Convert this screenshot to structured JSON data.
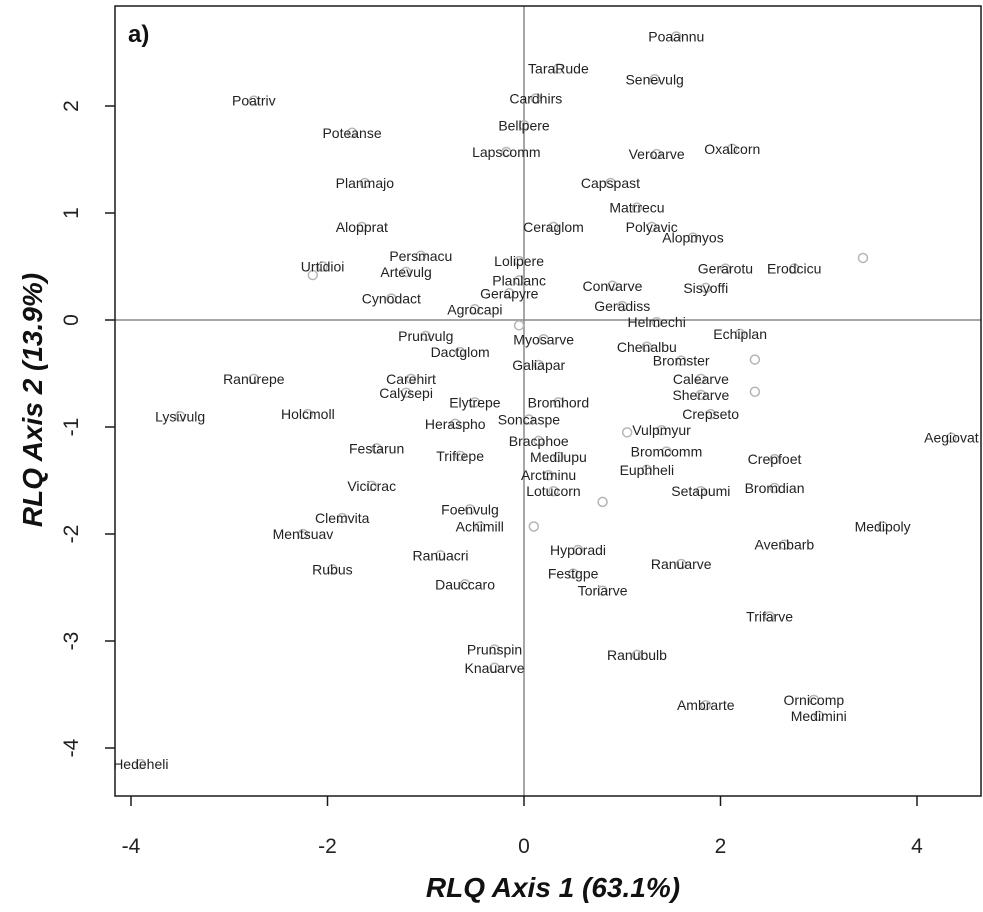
{
  "chart_data": {
    "type": "scatter",
    "panel_label": "a)",
    "xlabel": "RLQ Axis 1 (63.1%)",
    "ylabel": "RLQ Axis 2 (13.9%)",
    "xlim": [
      -4.1,
      4.6
    ],
    "ylim": [
      -4.4,
      2.95
    ],
    "xticks": [
      -4,
      -2,
      0,
      2,
      4
    ],
    "yticks": [
      -4,
      -3,
      -2,
      -1,
      0,
      1,
      2
    ],
    "reference_lines": {
      "x": 0,
      "y": 0
    },
    "grid": false,
    "points": [
      {
        "name": "Poaannu",
        "x": 1.55,
        "y": 2.65
      },
      {
        "name": "TaraRude",
        "x": 0.35,
        "y": 2.35
      },
      {
        "name": "Senevulg",
        "x": 1.33,
        "y": 2.25
      },
      {
        "name": "Poatriv",
        "x": -2.75,
        "y": 2.05
      },
      {
        "name": "Cardhirs",
        "x": 0.12,
        "y": 2.07
      },
      {
        "name": "Bellpere",
        "x": 0.0,
        "y": 1.82
      },
      {
        "name": "Poteanse",
        "x": -1.75,
        "y": 1.75
      },
      {
        "name": "Oxalcorn",
        "x": 2.12,
        "y": 1.6
      },
      {
        "name": "Veroarve",
        "x": 1.35,
        "y": 1.55
      },
      {
        "name": "Lapscomm",
        "x": -0.18,
        "y": 1.57
      },
      {
        "name": "Capspast",
        "x": 0.88,
        "y": 1.28
      },
      {
        "name": "Planmajo",
        "x": -1.62,
        "y": 1.28
      },
      {
        "name": "Matrrecu",
        "x": 1.15,
        "y": 1.05
      },
      {
        "name": "Ceraglom",
        "x": 0.3,
        "y": 0.87
      },
      {
        "name": "Polyavic",
        "x": 1.3,
        "y": 0.87
      },
      {
        "name": "Alopprat",
        "x": -1.65,
        "y": 0.87
      },
      {
        "name": "Alopmyos",
        "x": 1.72,
        "y": 0.77
      },
      {
        "name": "Persmacu",
        "x": -1.05,
        "y": 0.6
      },
      {
        "name": "Lolipere",
        "x": -0.05,
        "y": 0.55
      },
      {
        "name": "Urtidioi",
        "x": -2.05,
        "y": 0.5
      },
      {
        "name": "Artevulg",
        "x": -1.2,
        "y": 0.45
      },
      {
        "name": "Planlanc",
        "x": -0.05,
        "y": 0.37
      },
      {
        "name": "Convarve",
        "x": 0.9,
        "y": 0.32
      },
      {
        "name": "Gerarotu",
        "x": 2.05,
        "y": 0.48
      },
      {
        "name": "Erodcicu",
        "x": 2.75,
        "y": 0.48
      },
      {
        "name": "Cynodact",
        "x": -1.35,
        "y": 0.2
      },
      {
        "name": "Gerapyre",
        "x": -0.15,
        "y": 0.25
      },
      {
        "name": "Sisyoffi",
        "x": 1.85,
        "y": 0.3
      },
      {
        "name": "Agrocapi",
        "x": -0.5,
        "y": 0.1
      },
      {
        "name": "Geradiss",
        "x": 1.0,
        "y": 0.13
      },
      {
        "name": "Helmechi",
        "x": 1.35,
        "y": -0.02
      },
      {
        "name": "Prunvulg",
        "x": -1.0,
        "y": -0.15
      },
      {
        "name": "Echiplan",
        "x": 2.2,
        "y": -0.13
      },
      {
        "name": "Myosarve",
        "x": 0.2,
        "y": -0.18
      },
      {
        "name": "Chenalbu",
        "x": 1.25,
        "y": -0.25
      },
      {
        "name": "Dactglom",
        "x": -0.65,
        "y": -0.3
      },
      {
        "name": "Bromster",
        "x": 1.6,
        "y": -0.38
      },
      {
        "name": "Galiapar",
        "x": 0.15,
        "y": -0.42
      },
      {
        "name": "Ranurepe",
        "x": -2.75,
        "y": -0.55
      },
      {
        "name": "Carehirt",
        "x": -1.15,
        "y": -0.55
      },
      {
        "name": "Calearve",
        "x": 1.8,
        "y": -0.55
      },
      {
        "name": "Calysepi",
        "x": -1.2,
        "y": -0.68
      },
      {
        "name": "Sherarve",
        "x": 1.8,
        "y": -0.7
      },
      {
        "name": "Elytrepe",
        "x": -0.5,
        "y": -0.77
      },
      {
        "name": "Bromhord",
        "x": 0.35,
        "y": -0.77
      },
      {
        "name": "Lysivulg",
        "x": -3.5,
        "y": -0.9
      },
      {
        "name": "Holcmoll",
        "x": -2.2,
        "y": -0.88
      },
      {
        "name": "Crepseto",
        "x": 1.9,
        "y": -0.88
      },
      {
        "name": "Soncaspe",
        "x": 0.05,
        "y": -0.93
      },
      {
        "name": "Heraspho",
        "x": -0.7,
        "y": -0.97
      },
      {
        "name": "Vulpmyur",
        "x": 1.4,
        "y": -1.03
      },
      {
        "name": "Bracphoe",
        "x": 0.15,
        "y": -1.13
      },
      {
        "name": "Aegiovat",
        "x": 4.35,
        "y": -1.1
      },
      {
        "name": "Festarun",
        "x": -1.5,
        "y": -1.2
      },
      {
        "name": "Trifrepe",
        "x": -0.65,
        "y": -1.27
      },
      {
        "name": "Bromcomm",
        "x": 1.45,
        "y": -1.23
      },
      {
        "name": "Medilupu",
        "x": 0.35,
        "y": -1.28
      },
      {
        "name": "Crepfoet",
        "x": 2.55,
        "y": -1.3
      },
      {
        "name": "Euphheli",
        "x": 1.25,
        "y": -1.4
      },
      {
        "name": "Arctminu",
        "x": 0.25,
        "y": -1.45
      },
      {
        "name": "Vicicrac",
        "x": -1.55,
        "y": -1.55
      },
      {
        "name": "Lotucorn",
        "x": 0.3,
        "y": -1.6
      },
      {
        "name": "Setapumi",
        "x": 1.8,
        "y": -1.6
      },
      {
        "name": "Bromdian",
        "x": 2.55,
        "y": -1.57
      },
      {
        "name": "Foenvulg",
        "x": -0.55,
        "y": -1.77
      },
      {
        "name": "Clemvita",
        "x": -1.85,
        "y": -1.85
      },
      {
        "name": "Achimill",
        "x": -0.45,
        "y": -1.93
      },
      {
        "name": "Medipoly",
        "x": 3.65,
        "y": -1.93
      },
      {
        "name": "Mentsuav",
        "x": -2.25,
        "y": -2.0
      },
      {
        "name": "Hyporadi",
        "x": 0.55,
        "y": -2.15
      },
      {
        "name": "Avenbarb",
        "x": 2.65,
        "y": -2.1
      },
      {
        "name": "Ranuacri",
        "x": -0.85,
        "y": -2.2
      },
      {
        "name": "Rubus",
        "x": -1.95,
        "y": -2.33
      },
      {
        "name": "Ranuarve",
        "x": 1.6,
        "y": -2.28
      },
      {
        "name": "Festgpe",
        "x": 0.5,
        "y": -2.37
      },
      {
        "name": "Dauccaro",
        "x": -0.6,
        "y": -2.47
      },
      {
        "name": "Toriarve",
        "x": 0.8,
        "y": -2.53
      },
      {
        "name": "Trifarve",
        "x": 2.5,
        "y": -2.77
      },
      {
        "name": "Prunspin",
        "x": -0.3,
        "y": -3.08
      },
      {
        "name": "Ranubulb",
        "x": 1.15,
        "y": -3.13
      },
      {
        "name": "Knauarve",
        "x": -0.3,
        "y": -3.25
      },
      {
        "name": "Ambrarte",
        "x": 1.85,
        "y": -3.6
      },
      {
        "name": "Ornicomp",
        "x": 2.95,
        "y": -3.55
      },
      {
        "name": "Medimini",
        "x": 3.0,
        "y": -3.7
      },
      {
        "name": "Hedeheli",
        "x": -3.9,
        "y": -4.15
      }
    ],
    "extra_markers": [
      {
        "x": 3.45,
        "y": 0.58
      },
      {
        "x": 2.35,
        "y": -0.37
      },
      {
        "x": 2.35,
        "y": -0.67
      },
      {
        "x": -0.05,
        "y": -0.05
      },
      {
        "x": 0.8,
        "y": -1.7
      },
      {
        "x": 1.05,
        "y": -1.05
      },
      {
        "x": 0.1,
        "y": -1.93
      },
      {
        "x": -2.15,
        "y": 0.42
      }
    ]
  }
}
